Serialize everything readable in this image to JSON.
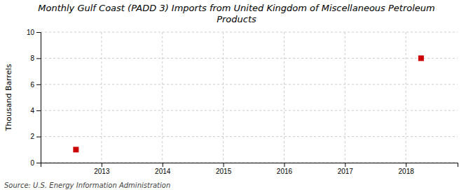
{
  "chart_data": {
    "type": "scatter",
    "title": "Monthly Gulf Coast (PADD 3) Imports from United Kingdom of Miscellaneous Petroleum\nProducts",
    "y_label": "Thousand Barrels",
    "source": "Source: U.S. Energy Information Administration",
    "x": [
      2012.58,
      2018.25
    ],
    "values": [
      1,
      8
    ],
    "color": "#cc0000",
    "marker": "square",
    "xlim": [
      2012.0,
      2018.85
    ],
    "xticks": [
      2013,
      2014,
      2015,
      2016,
      2017,
      2018
    ],
    "ylim": [
      0,
      10
    ],
    "yticks": [
      0,
      2,
      4,
      6,
      8,
      10
    ],
    "grid": true
  }
}
